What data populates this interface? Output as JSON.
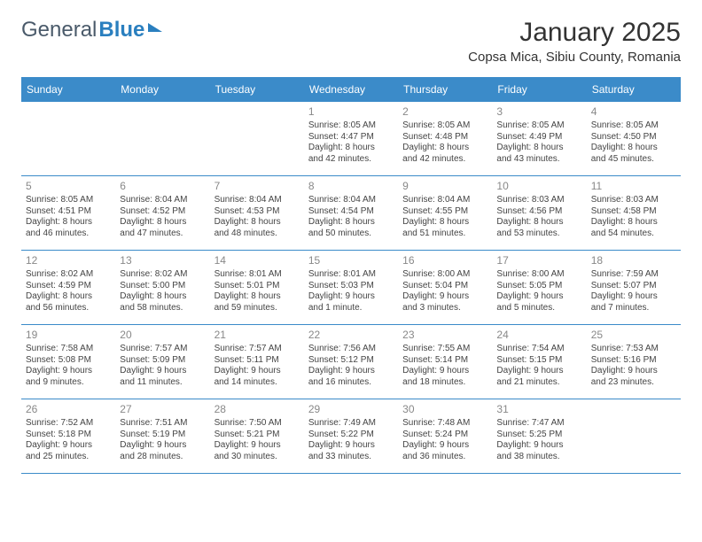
{
  "logo": {
    "text1": "General",
    "text2": "Blue"
  },
  "header": {
    "month_title": "January 2025",
    "location": "Copsa Mica, Sibiu County, Romania"
  },
  "colors": {
    "header_blue": "#3b8bc9",
    "text": "#333333",
    "muted": "#888888",
    "background": "#ffffff"
  },
  "day_headers": [
    "Sunday",
    "Monday",
    "Tuesday",
    "Wednesday",
    "Thursday",
    "Friday",
    "Saturday"
  ],
  "weeks": [
    [
      {
        "num": "",
        "sunrise": "",
        "sunset": "",
        "daylight1": "",
        "daylight2": ""
      },
      {
        "num": "",
        "sunrise": "",
        "sunset": "",
        "daylight1": "",
        "daylight2": ""
      },
      {
        "num": "",
        "sunrise": "",
        "sunset": "",
        "daylight1": "",
        "daylight2": ""
      },
      {
        "num": "1",
        "sunrise": "Sunrise: 8:05 AM",
        "sunset": "Sunset: 4:47 PM",
        "daylight1": "Daylight: 8 hours",
        "daylight2": "and 42 minutes."
      },
      {
        "num": "2",
        "sunrise": "Sunrise: 8:05 AM",
        "sunset": "Sunset: 4:48 PM",
        "daylight1": "Daylight: 8 hours",
        "daylight2": "and 42 minutes."
      },
      {
        "num": "3",
        "sunrise": "Sunrise: 8:05 AM",
        "sunset": "Sunset: 4:49 PM",
        "daylight1": "Daylight: 8 hours",
        "daylight2": "and 43 minutes."
      },
      {
        "num": "4",
        "sunrise": "Sunrise: 8:05 AM",
        "sunset": "Sunset: 4:50 PM",
        "daylight1": "Daylight: 8 hours",
        "daylight2": "and 45 minutes."
      }
    ],
    [
      {
        "num": "5",
        "sunrise": "Sunrise: 8:05 AM",
        "sunset": "Sunset: 4:51 PM",
        "daylight1": "Daylight: 8 hours",
        "daylight2": "and 46 minutes."
      },
      {
        "num": "6",
        "sunrise": "Sunrise: 8:04 AM",
        "sunset": "Sunset: 4:52 PM",
        "daylight1": "Daylight: 8 hours",
        "daylight2": "and 47 minutes."
      },
      {
        "num": "7",
        "sunrise": "Sunrise: 8:04 AM",
        "sunset": "Sunset: 4:53 PM",
        "daylight1": "Daylight: 8 hours",
        "daylight2": "and 48 minutes."
      },
      {
        "num": "8",
        "sunrise": "Sunrise: 8:04 AM",
        "sunset": "Sunset: 4:54 PM",
        "daylight1": "Daylight: 8 hours",
        "daylight2": "and 50 minutes."
      },
      {
        "num": "9",
        "sunrise": "Sunrise: 8:04 AM",
        "sunset": "Sunset: 4:55 PM",
        "daylight1": "Daylight: 8 hours",
        "daylight2": "and 51 minutes."
      },
      {
        "num": "10",
        "sunrise": "Sunrise: 8:03 AM",
        "sunset": "Sunset: 4:56 PM",
        "daylight1": "Daylight: 8 hours",
        "daylight2": "and 53 minutes."
      },
      {
        "num": "11",
        "sunrise": "Sunrise: 8:03 AM",
        "sunset": "Sunset: 4:58 PM",
        "daylight1": "Daylight: 8 hours",
        "daylight2": "and 54 minutes."
      }
    ],
    [
      {
        "num": "12",
        "sunrise": "Sunrise: 8:02 AM",
        "sunset": "Sunset: 4:59 PM",
        "daylight1": "Daylight: 8 hours",
        "daylight2": "and 56 minutes."
      },
      {
        "num": "13",
        "sunrise": "Sunrise: 8:02 AM",
        "sunset": "Sunset: 5:00 PM",
        "daylight1": "Daylight: 8 hours",
        "daylight2": "and 58 minutes."
      },
      {
        "num": "14",
        "sunrise": "Sunrise: 8:01 AM",
        "sunset": "Sunset: 5:01 PM",
        "daylight1": "Daylight: 8 hours",
        "daylight2": "and 59 minutes."
      },
      {
        "num": "15",
        "sunrise": "Sunrise: 8:01 AM",
        "sunset": "Sunset: 5:03 PM",
        "daylight1": "Daylight: 9 hours",
        "daylight2": "and 1 minute."
      },
      {
        "num": "16",
        "sunrise": "Sunrise: 8:00 AM",
        "sunset": "Sunset: 5:04 PM",
        "daylight1": "Daylight: 9 hours",
        "daylight2": "and 3 minutes."
      },
      {
        "num": "17",
        "sunrise": "Sunrise: 8:00 AM",
        "sunset": "Sunset: 5:05 PM",
        "daylight1": "Daylight: 9 hours",
        "daylight2": "and 5 minutes."
      },
      {
        "num": "18",
        "sunrise": "Sunrise: 7:59 AM",
        "sunset": "Sunset: 5:07 PM",
        "daylight1": "Daylight: 9 hours",
        "daylight2": "and 7 minutes."
      }
    ],
    [
      {
        "num": "19",
        "sunrise": "Sunrise: 7:58 AM",
        "sunset": "Sunset: 5:08 PM",
        "daylight1": "Daylight: 9 hours",
        "daylight2": "and 9 minutes."
      },
      {
        "num": "20",
        "sunrise": "Sunrise: 7:57 AM",
        "sunset": "Sunset: 5:09 PM",
        "daylight1": "Daylight: 9 hours",
        "daylight2": "and 11 minutes."
      },
      {
        "num": "21",
        "sunrise": "Sunrise: 7:57 AM",
        "sunset": "Sunset: 5:11 PM",
        "daylight1": "Daylight: 9 hours",
        "daylight2": "and 14 minutes."
      },
      {
        "num": "22",
        "sunrise": "Sunrise: 7:56 AM",
        "sunset": "Sunset: 5:12 PM",
        "daylight1": "Daylight: 9 hours",
        "daylight2": "and 16 minutes."
      },
      {
        "num": "23",
        "sunrise": "Sunrise: 7:55 AM",
        "sunset": "Sunset: 5:14 PM",
        "daylight1": "Daylight: 9 hours",
        "daylight2": "and 18 minutes."
      },
      {
        "num": "24",
        "sunrise": "Sunrise: 7:54 AM",
        "sunset": "Sunset: 5:15 PM",
        "daylight1": "Daylight: 9 hours",
        "daylight2": "and 21 minutes."
      },
      {
        "num": "25",
        "sunrise": "Sunrise: 7:53 AM",
        "sunset": "Sunset: 5:16 PM",
        "daylight1": "Daylight: 9 hours",
        "daylight2": "and 23 minutes."
      }
    ],
    [
      {
        "num": "26",
        "sunrise": "Sunrise: 7:52 AM",
        "sunset": "Sunset: 5:18 PM",
        "daylight1": "Daylight: 9 hours",
        "daylight2": "and 25 minutes."
      },
      {
        "num": "27",
        "sunrise": "Sunrise: 7:51 AM",
        "sunset": "Sunset: 5:19 PM",
        "daylight1": "Daylight: 9 hours",
        "daylight2": "and 28 minutes."
      },
      {
        "num": "28",
        "sunrise": "Sunrise: 7:50 AM",
        "sunset": "Sunset: 5:21 PM",
        "daylight1": "Daylight: 9 hours",
        "daylight2": "and 30 minutes."
      },
      {
        "num": "29",
        "sunrise": "Sunrise: 7:49 AM",
        "sunset": "Sunset: 5:22 PM",
        "daylight1": "Daylight: 9 hours",
        "daylight2": "and 33 minutes."
      },
      {
        "num": "30",
        "sunrise": "Sunrise: 7:48 AM",
        "sunset": "Sunset: 5:24 PM",
        "daylight1": "Daylight: 9 hours",
        "daylight2": "and 36 minutes."
      },
      {
        "num": "31",
        "sunrise": "Sunrise: 7:47 AM",
        "sunset": "Sunset: 5:25 PM",
        "daylight1": "Daylight: 9 hours",
        "daylight2": "and 38 minutes."
      },
      {
        "num": "",
        "sunrise": "",
        "sunset": "",
        "daylight1": "",
        "daylight2": ""
      }
    ]
  ]
}
